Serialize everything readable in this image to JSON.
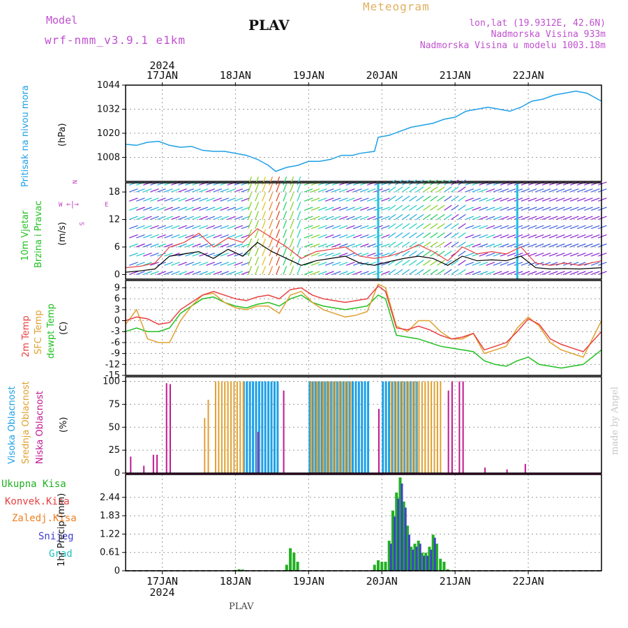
{
  "header": {
    "model_label": "Model",
    "model_name": "wrf-nmm_v3.9.1 e1km",
    "station": "PLAV",
    "product": "Meteogram",
    "lonlat": "lon,lat (19.9312E, 42.6N)",
    "elevation": "Nadmorska Visina 933m",
    "model_elevation": "Nadmorska Visina u modelu 1003.18m",
    "footer_station": "PLAV",
    "credit": "made by Angel"
  },
  "colors": {
    "pressure": "#1ea0e6",
    "temp2m": "#e84040",
    "sfc_temp": "#e0a030",
    "dewpt": "#20c020",
    "high_cloud": "#1ea0e6",
    "mid_cloud": "#e0a030",
    "low_cloud": "#c01890",
    "total_precip": "#20b020",
    "conv_precip": "#e84040",
    "frz_precip": "#f08020",
    "snow": "#4040d0",
    "hail": "#20c0c0",
    "wind_title": "#20c020",
    "wind_unit": "#c040c0"
  },
  "axis": {
    "year": "2024",
    "days": [
      "17JAN",
      "18JAN",
      "19JAN",
      "20JAN",
      "21JAN",
      "22JAN"
    ],
    "day_offsets": [
      0.5,
      1.5,
      2.5,
      3.5,
      4.5,
      5.5
    ],
    "xlim": [
      0,
      6.5
    ]
  },
  "chart_data": [
    {
      "type": "line",
      "panel": "pressure",
      "ylabel_lines": [
        "Pritisak na nivou mora"
      ],
      "unit": "(hPa)",
      "yticks": [
        "1044",
        "1032",
        "1020",
        "1008"
      ],
      "ylim": [
        996,
        1044
      ],
      "series": [
        {
          "name": "pressure",
          "x": [
            0,
            0.15,
            0.3,
            0.45,
            0.6,
            0.75,
            0.9,
            1.05,
            1.2,
            1.35,
            1.5,
            1.65,
            1.8,
            1.95,
            2.05,
            2.2,
            2.35,
            2.5,
            2.65,
            2.8,
            2.95,
            3.1,
            3.2,
            3.4,
            3.45,
            3.6,
            3.75,
            3.9,
            4.05,
            4.2,
            4.35,
            4.5,
            4.65,
            4.8,
            4.95,
            5.1,
            5.25,
            5.4,
            5.55,
            5.7,
            5.85,
            6.0,
            6.15,
            6.3,
            6.5
          ],
          "values": [
            1014.5,
            1014,
            1015.5,
            1016,
            1014,
            1013,
            1013.5,
            1011.5,
            1011,
            1011,
            1010,
            1009,
            1007,
            1004,
            1001,
            1003,
            1004,
            1006,
            1006,
            1007,
            1009,
            1009,
            1010,
            1011,
            1018,
            1019,
            1021,
            1023,
            1024,
            1025,
            1027,
            1028,
            1031,
            1032,
            1033,
            1032,
            1031,
            1033,
            1036,
            1037,
            1039,
            1040,
            1041,
            1040,
            1036
          ]
        }
      ]
    },
    {
      "type": "line",
      "panel": "wind",
      "ylabel_lines": [
        "10m Vjetar",
        "Brzina i Pravac"
      ],
      "unit": "(m/s)",
      "compass": {
        "n": "N",
        "s": "S",
        "e": "E",
        "w": "W"
      },
      "yticks": [
        "18",
        "12",
        "6",
        "0"
      ],
      "ylim": [
        -1,
        20
      ],
      "series": [
        {
          "name": "wind speed",
          "x": [
            0,
            0.2,
            0.4,
            0.6,
            0.8,
            1.0,
            1.2,
            1.4,
            1.6,
            1.8,
            2.0,
            2.2,
            2.4,
            2.6,
            2.8,
            3.0,
            3.2,
            3.4,
            3.6,
            3.8,
            4.0,
            4.2,
            4.4,
            4.6,
            4.8,
            5.0,
            5.2,
            5.4,
            5.6,
            5.8,
            6.0,
            6.2,
            6.5
          ],
          "values": [
            0.5,
            0.8,
            1.2,
            4,
            4.5,
            5,
            3.5,
            5.5,
            4,
            7,
            5,
            3.5,
            2,
            3,
            3.5,
            4,
            2.5,
            2,
            2.8,
            3.5,
            4,
            3.5,
            2,
            4,
            3,
            3.2,
            3,
            4,
            1.5,
            1.2,
            1.3,
            1.2,
            1.5
          ]
        },
        {
          "name": "wind gust",
          "x": [
            0,
            0.2,
            0.4,
            0.6,
            0.8,
            1.0,
            1.2,
            1.4,
            1.6,
            1.8,
            2.0,
            2.2,
            2.4,
            2.6,
            2.8,
            3.0,
            3.2,
            3.4,
            3.6,
            3.8,
            4.0,
            4.2,
            4.4,
            4.6,
            4.8,
            5.0,
            5.2,
            5.4,
            5.6,
            5.8,
            6.0,
            6.2,
            6.5
          ],
          "values": [
            1.5,
            1.8,
            2.5,
            6,
            7,
            9,
            6,
            8,
            7,
            10,
            8,
            6,
            3.5,
            5,
            5.5,
            6,
            4,
            3.5,
            4,
            5,
            6.5,
            5,
            3,
            6,
            4.5,
            5,
            4.5,
            6,
            2.5,
            2,
            2.5,
            2,
            3
          ]
        }
      ]
    },
    {
      "type": "line",
      "panel": "temperature",
      "ylabel_lines": [
        "2m Temp",
        "SFC Temp",
        "dewpt Temp"
      ],
      "unit": "(C)",
      "yticks": [
        "9",
        "6",
        "3",
        "0",
        "-3",
        "-6",
        "-9",
        "-12",
        "-15"
      ],
      "ylim": [
        -15,
        11
      ],
      "series": [
        {
          "name": "2m Temp",
          "x": [
            0,
            0.15,
            0.3,
            0.45,
            0.6,
            0.75,
            0.9,
            1.05,
            1.2,
            1.35,
            1.5,
            1.65,
            1.8,
            1.95,
            2.1,
            2.25,
            2.4,
            2.55,
            2.7,
            2.85,
            3.0,
            3.15,
            3.3,
            3.45,
            3.55,
            3.7,
            3.85,
            4.0,
            4.15,
            4.3,
            4.45,
            4.6,
            4.75,
            4.9,
            5.05,
            5.2,
            5.35,
            5.5,
            5.65,
            5.8,
            5.95,
            6.1,
            6.25,
            6.5
          ],
          "values": [
            0,
            1,
            0.5,
            -1,
            -0.5,
            3,
            5,
            7,
            8,
            7,
            6,
            5.5,
            6.5,
            7,
            6,
            8.5,
            9,
            7,
            6,
            5.5,
            5,
            5.5,
            6,
            9.5,
            8,
            -2,
            -2.5,
            -1.5,
            -2.5,
            -4,
            -5,
            -4.5,
            -3.5,
            -8,
            -7,
            -6,
            -3,
            0.5,
            -1,
            -5,
            -6.5,
            -7.5,
            -8.5,
            -3
          ]
        },
        {
          "name": "SFC Temp",
          "x": [
            0,
            0.15,
            0.3,
            0.45,
            0.6,
            0.75,
            0.9,
            1.05,
            1.2,
            1.35,
            1.5,
            1.65,
            1.8,
            1.95,
            2.1,
            2.25,
            2.4,
            2.55,
            2.7,
            2.85,
            3.0,
            3.15,
            3.3,
            3.45,
            3.55,
            3.7,
            3.85,
            4.0,
            4.15,
            4.3,
            4.45,
            4.6,
            4.75,
            4.9,
            5.05,
            5.2,
            5.35,
            5.5,
            5.65,
            5.8,
            5.95,
            6.1,
            6.25,
            6.5
          ],
          "values": [
            -1,
            3,
            -5,
            -6,
            -6,
            0,
            4,
            7,
            7.5,
            5,
            3.5,
            3,
            4,
            4,
            2,
            7,
            8,
            5,
            3,
            2,
            1,
            1.5,
            2.5,
            10,
            9,
            -1.5,
            -3,
            0,
            0,
            -3,
            -5,
            -5,
            -3.5,
            -9,
            -8,
            -7,
            -2,
            1,
            -1.5,
            -6,
            -8,
            -9,
            -10,
            0
          ]
        },
        {
          "name": "dewpt Temp",
          "x": [
            0,
            0.15,
            0.3,
            0.45,
            0.6,
            0.75,
            0.9,
            1.05,
            1.2,
            1.35,
            1.5,
            1.65,
            1.8,
            1.95,
            2.1,
            2.25,
            2.4,
            2.55,
            2.7,
            2.85,
            3.0,
            3.15,
            3.3,
            3.45,
            3.55,
            3.7,
            3.85,
            4.0,
            4.15,
            4.3,
            4.45,
            4.6,
            4.75,
            4.9,
            5.05,
            5.2,
            5.35,
            5.5,
            5.65,
            5.8,
            5.95,
            6.1,
            6.25,
            6.5
          ],
          "values": [
            -3,
            -2,
            -3,
            -3,
            -2,
            2,
            4,
            6,
            6.5,
            5,
            4,
            3.5,
            4.5,
            5,
            4,
            6,
            7,
            5,
            4,
            3.5,
            3,
            3.5,
            4,
            7,
            6,
            -4,
            -4.5,
            -5,
            -6,
            -7,
            -7.5,
            -8,
            -8.5,
            -11,
            -12,
            -12.5,
            -11,
            -10,
            -12,
            -12.5,
            -13,
            -12.5,
            -12,
            -8
          ]
        }
      ]
    },
    {
      "type": "bar",
      "panel": "clouds",
      "ylabel_lines": [
        "Visoka Oblacnost",
        "Srednja Oblacnost",
        "Niska Oblacnost"
      ],
      "unit": "(%)",
      "yticks": [
        "100",
        "75",
        "50",
        "25",
        "0"
      ],
      "ylim": [
        0,
        105
      ],
      "series": [
        {
          "name": "Visoka Oblacnost",
          "ranges": [
            [
              1.6,
              2.1
            ],
            [
              2.5,
              3.3
            ],
            [
              3.5,
              4.0
            ]
          ],
          "value": 100
        },
        {
          "name": "Srednja Oblacnost",
          "ranges": [
            [
              1.05,
              1.1
            ],
            [
              1.1,
              1.15
            ],
            [
              1.2,
              1.6
            ],
            [
              2.5,
              2.75
            ],
            [
              2.75,
              3.1
            ],
            [
              3.6,
              4.3
            ]
          ],
          "values_by_range": [
            60,
            80,
            100,
            100,
            100,
            100
          ]
        },
        {
          "name": "Niska Oblacnost",
          "points": [
            [
              0.06,
              18
            ],
            [
              0.24,
              8
            ],
            [
              0.37,
              20
            ],
            [
              0.42,
              20
            ],
            [
              0.55,
              98
            ],
            [
              0.6,
              97
            ],
            [
              1.8,
              45
            ],
            [
              2.15,
              90
            ],
            [
              3.45,
              70
            ],
            [
              4.6,
              100
            ],
            [
              4.55,
              100
            ],
            [
              4.45,
              100
            ],
            [
              4.4,
              90
            ],
            [
              4.45,
              3
            ],
            [
              4.9,
              6
            ],
            [
              5.2,
              4
            ],
            [
              5.45,
              10
            ]
          ]
        }
      ]
    },
    {
      "type": "bar",
      "panel": "precip",
      "ylabel_lines": [
        "1hr Precip (mm)"
      ],
      "unit": "",
      "legend": [
        "Ukupna Kisa",
        "Konvek.Kisa",
        "Zaledj.Kisa",
        "Snijeg",
        "Grad"
      ],
      "yticks": [
        "2.44",
        "1.83",
        "1.22",
        "0.61",
        "0"
      ],
      "ylim": [
        0,
        3.2
      ],
      "series": [
        {
          "name": "Ukupna Kisa",
          "x": [
            1.5,
            1.55,
            1.6,
            2.2,
            2.25,
            2.3,
            2.35,
            3.4,
            3.45,
            3.5,
            3.55,
            3.6,
            3.65,
            3.7,
            3.75,
            3.8,
            3.85,
            3.9,
            3.95,
            4.0,
            4.05,
            4.1,
            4.15,
            4.2,
            4.25,
            4.3,
            4.35,
            4.4
          ],
          "values": [
            0.03,
            0.05,
            0.04,
            0.2,
            0.75,
            0.6,
            0.3,
            0.2,
            0.35,
            0.3,
            0.3,
            1.0,
            2.0,
            2.6,
            3.1,
            2.3,
            1.5,
            0.8,
            0.9,
            1.0,
            0.6,
            0.6,
            0.8,
            1.2,
            0.9,
            0.4,
            0.3,
            0.05
          ]
        },
        {
          "name": "Snijeg",
          "x": [
            3.6,
            3.65,
            3.7,
            3.75,
            3.8,
            3.85,
            3.9,
            3.95,
            4.0,
            4.05,
            4.1,
            4.15,
            4.2
          ],
          "values": [
            0.9,
            1.8,
            2.4,
            2.9,
            2.1,
            1.2,
            0.7,
            0.8,
            0.9,
            0.5,
            0.5,
            0.7,
            1.1
          ]
        }
      ]
    }
  ]
}
